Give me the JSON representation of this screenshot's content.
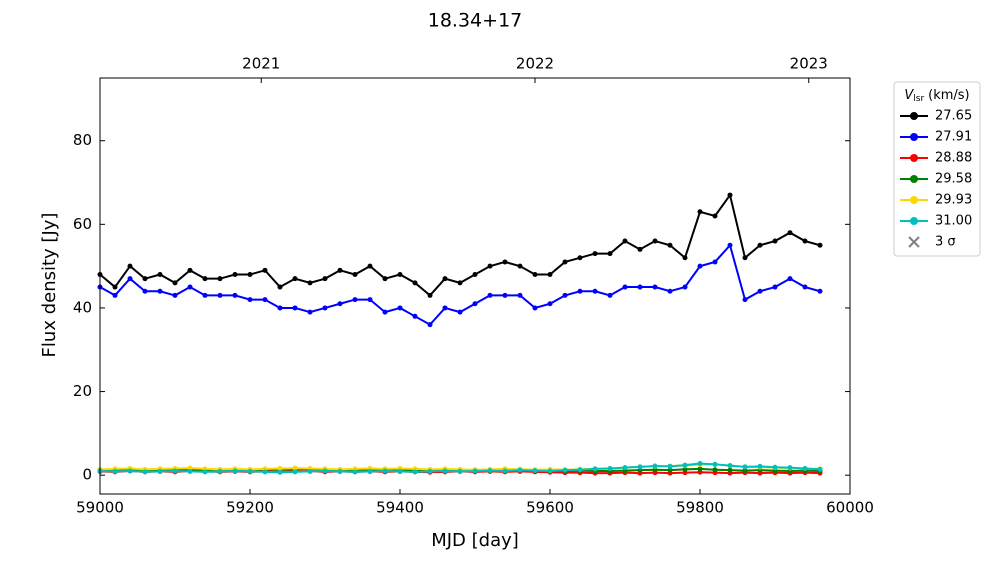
{
  "chart_data": {
    "type": "line",
    "title": "18.34+17",
    "xlabel": "MJD [day]",
    "ylabel": "Flux density [Jy]",
    "xlim": [
      59000,
      60000
    ],
    "xticks": [
      59000,
      59200,
      59400,
      59600,
      59800,
      60000
    ],
    "x2ticks": [
      {
        "value": 59215,
        "label": "2021"
      },
      {
        "value": 59580,
        "label": "2022"
      },
      {
        "value": 59945,
        "label": "2023"
      }
    ],
    "ylim": [
      -4.5,
      95
    ],
    "yticks": [
      0,
      20,
      40,
      60,
      80
    ],
    "legend_title": {
      "symbol": "V",
      "subscript": "lsr",
      "unit": "(km/s)"
    },
    "legend_position": "outside-upper-right",
    "threshold_label": "3 σ",
    "x": [
      59000,
      59020,
      59040,
      59060,
      59080,
      59100,
      59120,
      59140,
      59160,
      59180,
      59200,
      59220,
      59240,
      59260,
      59280,
      59300,
      59320,
      59340,
      59360,
      59380,
      59400,
      59420,
      59440,
      59460,
      59480,
      59500,
      59520,
      59540,
      59560,
      59580,
      59600,
      59620,
      59640,
      59660,
      59680,
      59700,
      59720,
      59740,
      59760,
      59780,
      59800,
      59820,
      59840,
      59860,
      59880,
      59900,
      59920,
      59940,
      59960
    ],
    "series": [
      {
        "name": "27.65",
        "color": "#000000",
        "values": [
          48,
          45,
          50,
          47,
          48,
          46,
          49,
          47,
          47,
          48,
          48,
          49,
          45,
          47,
          46,
          47,
          49,
          48,
          50,
          47,
          48,
          46,
          43,
          47,
          46,
          48,
          50,
          51,
          50,
          48,
          48,
          51,
          52,
          53,
          53,
          56,
          54,
          56,
          55,
          52,
          63,
          62,
          67,
          52,
          55,
          56,
          58,
          56,
          55
        ]
      },
      {
        "name": "27.91",
        "color": "#0000ff",
        "values": [
          45,
          43,
          47,
          44,
          44,
          43,
          45,
          43,
          43,
          43,
          42,
          42,
          40,
          40,
          39,
          40,
          41,
          42,
          42,
          39,
          40,
          38,
          36,
          40,
          39,
          41,
          43,
          43,
          43,
          40,
          41,
          43,
          44,
          44,
          43,
          45,
          45,
          45,
          44,
          45,
          50,
          51,
          55,
          42,
          44,
          45,
          47,
          45,
          44
        ]
      },
      {
        "name": "28.88",
        "color": "#ff0000",
        "values": [
          0.9,
          0.8,
          1.0,
          0.8,
          0.9,
          0.8,
          1.0,
          0.9,
          0.8,
          0.9,
          0.8,
          0.9,
          0.8,
          0.9,
          1.0,
          0.8,
          0.9,
          0.8,
          0.9,
          0.8,
          0.9,
          0.8,
          0.7,
          0.8,
          0.9,
          0.8,
          0.9,
          0.8,
          0.9,
          0.8,
          0.7,
          0.6,
          0.6,
          0.5,
          0.5,
          0.6,
          0.5,
          0.6,
          0.5,
          0.6,
          0.7,
          0.6,
          0.5,
          0.6,
          0.5,
          0.6,
          0.5,
          0.6,
          0.5
        ]
      },
      {
        "name": "29.58",
        "color": "#008000",
        "values": [
          1.2,
          1.3,
          1.4,
          1.2,
          1.3,
          1.2,
          1.4,
          1.3,
          1.2,
          1.3,
          1.2,
          1.4,
          1.3,
          1.4,
          1.5,
          1.3,
          1.2,
          1.3,
          1.4,
          1.2,
          1.3,
          1.2,
          1.1,
          1.2,
          1.3,
          1.2,
          1.3,
          1.4,
          1.3,
          1.2,
          1.1,
          1.0,
          1.1,
          1.0,
          1.0,
          1.1,
          1.2,
          1.3,
          1.2,
          1.4,
          1.5,
          1.3,
          1.2,
          1.1,
          1.2,
          1.1,
          1.0,
          1.1,
          1.0
        ]
      },
      {
        "name": "29.93",
        "color": "#ffd700",
        "values": [
          1.4,
          1.5,
          1.6,
          1.4,
          1.5,
          1.6,
          1.7,
          1.5,
          1.4,
          1.5,
          1.4,
          1.5,
          1.6,
          1.7,
          1.6,
          1.5,
          1.4,
          1.5,
          1.6,
          1.5,
          1.6,
          1.5,
          1.4,
          1.5,
          1.4,
          1.3,
          1.4,
          1.5,
          1.4,
          1.3,
          1.4,
          1.3,
          1.4,
          1.5,
          1.6,
          1.8,
          2.0,
          2.1,
          2.2,
          2.3,
          2.5,
          2.6,
          2.3,
          2.0,
          1.9,
          1.8,
          1.7,
          1.6,
          1.5
        ]
      },
      {
        "name": "31.00",
        "color": "#00bfbf",
        "values": [
          1.0,
          0.9,
          1.0,
          0.8,
          0.9,
          1.0,
          0.9,
          0.8,
          0.9,
          1.0,
          0.9,
          0.8,
          0.7,
          0.8,
          0.9,
          1.0,
          0.9,
          0.8,
          0.9,
          1.0,
          0.9,
          0.8,
          0.9,
          1.0,
          0.9,
          1.0,
          1.1,
          1.0,
          1.2,
          1.1,
          1.0,
          1.2,
          1.3,
          1.5,
          1.6,
          1.8,
          2.0,
          2.2,
          2.1,
          2.4,
          2.8,
          2.6,
          2.3,
          2.0,
          2.1,
          1.9,
          1.8,
          1.6,
          1.4
        ]
      }
    ]
  }
}
